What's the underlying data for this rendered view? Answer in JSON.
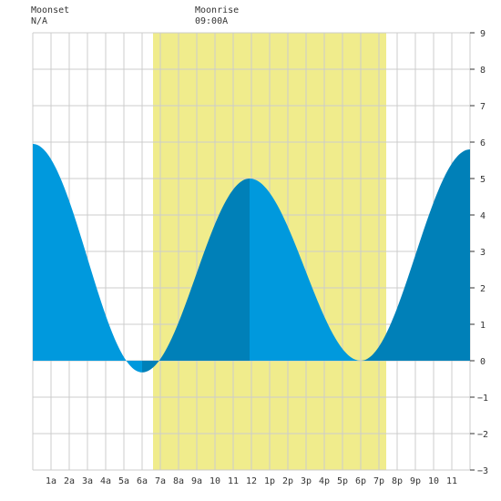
{
  "header": {
    "moonset_label": "Moonset",
    "moonset_value": "N/A",
    "moonrise_label": "Moonrise",
    "moonrise_value": "09:00A"
  },
  "chart_data": {
    "type": "area",
    "title": "",
    "xlabel": "",
    "ylabel": "",
    "grid": true,
    "xlim": [
      0,
      24
    ],
    "ylim": [
      -3,
      9
    ],
    "x_tick_labels": [
      "1a",
      "2a",
      "3a",
      "4a",
      "5a",
      "6a",
      "7a",
      "8a",
      "9a",
      "10",
      "11",
      "12",
      "1p",
      "2p",
      "3p",
      "4p",
      "5p",
      "6p",
      "7p",
      "8p",
      "9p",
      "10",
      "11"
    ],
    "y_ticks": [
      -3,
      -2,
      -1,
      0,
      1,
      2,
      3,
      4,
      5,
      6,
      7,
      8,
      9
    ],
    "daylight_band": {
      "start_hour": 6.6,
      "end_hour": 19.4,
      "color": "#f0ec8c"
    },
    "colors": {
      "rising": "#0080b8",
      "falling": "#0099dd",
      "grid": "#cccccc",
      "plot_bg": "#ffffff"
    },
    "tide_extremes": [
      {
        "hour": 0.0,
        "height": 5.95,
        "type": "high"
      },
      {
        "hour": 6.0,
        "height": -0.32,
        "type": "low"
      },
      {
        "hour": 11.9,
        "height": 5.0,
        "type": "high"
      },
      {
        "hour": 18.0,
        "height": 0.0,
        "type": "low"
      },
      {
        "hour": 24.0,
        "height": 5.8,
        "type": "high"
      }
    ]
  }
}
